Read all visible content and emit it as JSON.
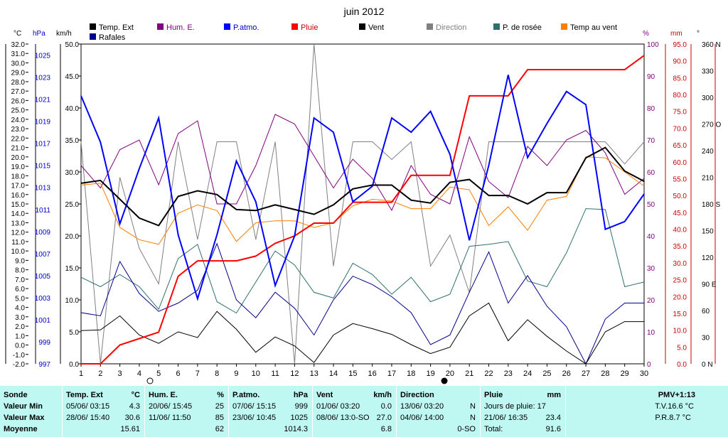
{
  "chart_data": {
    "type": "line",
    "title": "juin 2012",
    "x": [
      1,
      2,
      3,
      4,
      5,
      6,
      7,
      8,
      9,
      10,
      11,
      12,
      13,
      14,
      15,
      16,
      17,
      18,
      19,
      20,
      21,
      22,
      23,
      24,
      25,
      26,
      27,
      28,
      29,
      30
    ],
    "axes": {
      "left_temp": {
        "unit": "°C",
        "min": -2.0,
        "max": 32.0,
        "ticks": [
          "-2.0",
          "-1.0",
          "0.0",
          "1.0",
          "2.0",
          "3.0",
          "4.0",
          "5.0",
          "6.0",
          "7.0",
          "8.0",
          "9.0",
          "10.0",
          "11.0",
          "12.0",
          "13.0",
          "14.0",
          "15.0",
          "16.0",
          "17.0",
          "18.0",
          "19.0",
          "20.0",
          "21.0",
          "22.0",
          "23.0",
          "24.0",
          "25.0",
          "26.0",
          "27.0",
          "28.0",
          "29.0",
          "30.0",
          "31.0",
          "32.0"
        ]
      },
      "left_pressure": {
        "unit": "hPa",
        "min": 997,
        "max": 1026,
        "ticks": [
          "997",
          "999",
          "1001",
          "1003",
          "1005",
          "1007",
          "1009",
          "1011",
          "1013",
          "1015",
          "1017",
          "1019",
          "1021",
          "1023",
          "1025"
        ]
      },
      "left_wind": {
        "unit": "km/h",
        "min": 0,
        "max": 50,
        "ticks": [
          "0.0",
          "5.0",
          "10.0",
          "15.0",
          "20.0",
          "25.0",
          "30.0",
          "35.0",
          "40.0",
          "45.0",
          "50.0"
        ]
      },
      "right_humidity": {
        "unit": "%",
        "min": 0,
        "max": 100,
        "ticks": [
          "0",
          "10",
          "20",
          "30",
          "40",
          "50",
          "60",
          "70",
          "80",
          "90",
          "100"
        ]
      },
      "right_rain": {
        "unit": "mm",
        "min": 0,
        "max": 95,
        "ticks": [
          "0.0",
          "5.0",
          "10.0",
          "15.0",
          "20.0",
          "25.0",
          "30.0",
          "35.0",
          "40.0",
          "45.0",
          "50.0",
          "55.0",
          "60.0",
          "65.0",
          "70.0",
          "75.0",
          "80.0",
          "85.0",
          "90.0",
          "95.0"
        ]
      },
      "right_direction": {
        "unit": "°",
        "min": 0,
        "max": 360,
        "ticks": [
          "0 N",
          "30",
          "60",
          "90 E",
          "120",
          "150",
          "180 S",
          "210",
          "240",
          "270 O",
          "300",
          "330",
          "360 N"
        ]
      }
    },
    "legend": [
      {
        "name": "Temp. Ext",
        "color": "#000000"
      },
      {
        "name": "Hum. E.",
        "color": "#800080"
      },
      {
        "name": "P.atmo.",
        "color": "#0000ff"
      },
      {
        "name": "Pluie",
        "color": "#ff0000"
      },
      {
        "name": "Vent",
        "color": "#000000"
      },
      {
        "name": "Direction",
        "color": "#808080"
      },
      {
        "name": "P. de rosée",
        "color": "#2f6f6f"
      },
      {
        "name": "Temp au vent",
        "color": "#ff8000"
      },
      {
        "name": "Rafales",
        "color": "#00008b"
      }
    ],
    "series": [
      {
        "name": "Temp. Ext",
        "axis": "left_temp",
        "color": "#000000",
        "width": 2,
        "values": [
          17.2,
          17.5,
          15.5,
          13.5,
          12.7,
          15.8,
          16.4,
          16.0,
          14.4,
          14.3,
          14.9,
          14.4,
          13.9,
          14.9,
          16.6,
          17.0,
          17.0,
          15.4,
          15.1,
          17.3,
          17.6,
          15.9,
          15.9,
          15.0,
          16.2,
          16.2,
          19.9,
          21.0,
          18.5,
          17.4
        ]
      },
      {
        "name": "Hum. E.",
        "axis": "right_humidity",
        "color": "#800080",
        "width": 1,
        "values": [
          62,
          55,
          67,
          70,
          56,
          72,
          76,
          50,
          50,
          62,
          78,
          75,
          65,
          55,
          64,
          58,
          48,
          62,
          53,
          50,
          71,
          57,
          52,
          68,
          62,
          70,
          73,
          66,
          53,
          58
        ]
      },
      {
        "name": "P.atmo.",
        "axis": "left_pressure",
        "color": "#0000ff",
        "width": 2,
        "values": [
          1021.3,
          1017.1,
          1009.7,
          1014.7,
          1019.3,
          1008.7,
          1002.9,
          1008.7,
          1015.4,
          1011.7,
          1004.1,
          1008.6,
          1019.3,
          1018.0,
          1011.7,
          1013.1,
          1019.3,
          1018.0,
          1019.9,
          1016.0,
          1008.2,
          1015.0,
          1023.2,
          1015.7,
          1018.8,
          1021.7,
          1020.5,
          1009.2,
          1009.9,
          1012.4
        ]
      },
      {
        "name": "Pluie",
        "axis": "right_rain",
        "color": "#ff0000",
        "width": 2,
        "values": [
          0,
          0,
          5.6,
          7.5,
          9.4,
          26.0,
          30.6,
          30.6,
          30.6,
          32.0,
          35.8,
          38.0,
          41.8,
          41.8,
          48.0,
          48.0,
          48.0,
          56.0,
          56.0,
          56.0,
          79.6,
          79.6,
          79.6,
          87.4,
          87.4,
          87.4,
          87.4,
          87.4,
          87.4,
          91.6
        ]
      },
      {
        "name": "Vent",
        "axis": "left_wind",
        "color": "#000000",
        "width": 1,
        "values": [
          5.2,
          5.3,
          7.5,
          4.5,
          3.2,
          5.0,
          4.1,
          8.2,
          5.4,
          1.8,
          4.2,
          2.8,
          0.2,
          4.5,
          6.3,
          5.5,
          4.6,
          3.0,
          1.6,
          2.6,
          7.5,
          9.5,
          3.6,
          6.9,
          4.3,
          2.0,
          0,
          5.0,
          6.6,
          6.6
        ]
      },
      {
        "name": "Direction",
        "axis": "right_direction",
        "color": "#808080",
        "width": 1,
        "values": [
          250,
          0,
          210,
          130,
          90,
          250,
          140,
          250,
          250,
          140,
          250,
          0,
          360,
          110,
          250,
          250,
          230,
          250,
          110,
          145,
          80,
          250,
          250,
          250,
          250,
          250,
          250,
          250,
          225,
          250
        ]
      },
      {
        "name": "P. de rosée",
        "axis": "left_temp",
        "color": "#2f6f6f",
        "width": 1,
        "values": [
          7.2,
          6.2,
          7.5,
          6.2,
          3.8,
          9.2,
          10.7,
          4.6,
          3.4,
          6.7,
          10.0,
          8.5,
          5.6,
          5.0,
          8.7,
          7.5,
          5.4,
          7.2,
          4.6,
          5.4,
          10.5,
          10.7,
          11.0,
          6.8,
          6.2,
          9.8,
          14.5,
          14.4,
          6.2,
          6.7
        ]
      },
      {
        "name": "Temp au vent",
        "axis": "left_temp",
        "color": "#ff8000",
        "width": 1,
        "values": [
          17.0,
          17.2,
          12.5,
          11.2,
          10.7,
          14.0,
          14.9,
          14.3,
          11.0,
          13.0,
          13.2,
          13.2,
          12.5,
          13.0,
          14.8,
          15.5,
          15.3,
          14.5,
          14.5,
          16.8,
          16.5,
          12.7,
          14.7,
          12.2,
          15.4,
          15.8,
          20.0,
          19.9,
          18.4,
          16.9
        ]
      },
      {
        "name": "Rafales",
        "axis": "left_wind",
        "color": "#00008b",
        "width": 1,
        "values": [
          8.0,
          7.5,
          16.0,
          11.0,
          8.2,
          9.5,
          11.5,
          18.8,
          10.0,
          7.2,
          11.2,
          8.7,
          4.5,
          10.0,
          13.7,
          12.4,
          10.5,
          8.0,
          3.0,
          4.5,
          11.2,
          17.5,
          9.5,
          13.8,
          9.0,
          5.8,
          0,
          7.0,
          9.5,
          9.5
        ]
      }
    ]
  },
  "stats": {
    "sonde": {
      "title": "Sonde",
      "r1": "Valeur Min",
      "r2": "Valeur Max",
      "r3": "Moyenne"
    },
    "temp": {
      "title": "Temp. Ext",
      "unit": "°C",
      "min_date": "05/06/ 03:15",
      "min": "4.3",
      "max_date": "28/06/ 15:40",
      "max": "30.6",
      "avg": "15.61"
    },
    "hum": {
      "title": "Hum. E.",
      "unit": "%",
      "min_date": "20/06/ 15:45",
      "min": "25",
      "max_date": "11/06/ 11:50",
      "max": "85",
      "avg": "62"
    },
    "press": {
      "title": "P.atmo.",
      "unit": "hPa",
      "min_date": "07/06/ 15:15",
      "min": "999",
      "max_date": "23/06/ 10:45",
      "max": "1025",
      "avg": "1014.3"
    },
    "vent": {
      "title": "Vent",
      "unit": "km/h",
      "min_date": "01/06/ 03:20",
      "min": "0.0",
      "max_date": "08/06/ 13:0-SO",
      "max": "27.0",
      "avg": "6.8"
    },
    "dir": {
      "title": "Direction",
      "min_date": "13/06/ 03:20",
      "min": "N",
      "max_date": "04/06/ 14:00",
      "max": "N",
      "avg": "0-SO"
    },
    "pluie": {
      "title": "Pluie",
      "unit": "mm",
      "r1": "Jours de pluie: 17",
      "r2_date": "21/06/ 16:35",
      "r2": "23.4",
      "r3_label": "Total:",
      "r3": "91.6"
    },
    "pmv": {
      "title": "PMV+1:13",
      "r1": "T.V.16.6 °C",
      "r2": "P.R.8.7 °C"
    }
  }
}
